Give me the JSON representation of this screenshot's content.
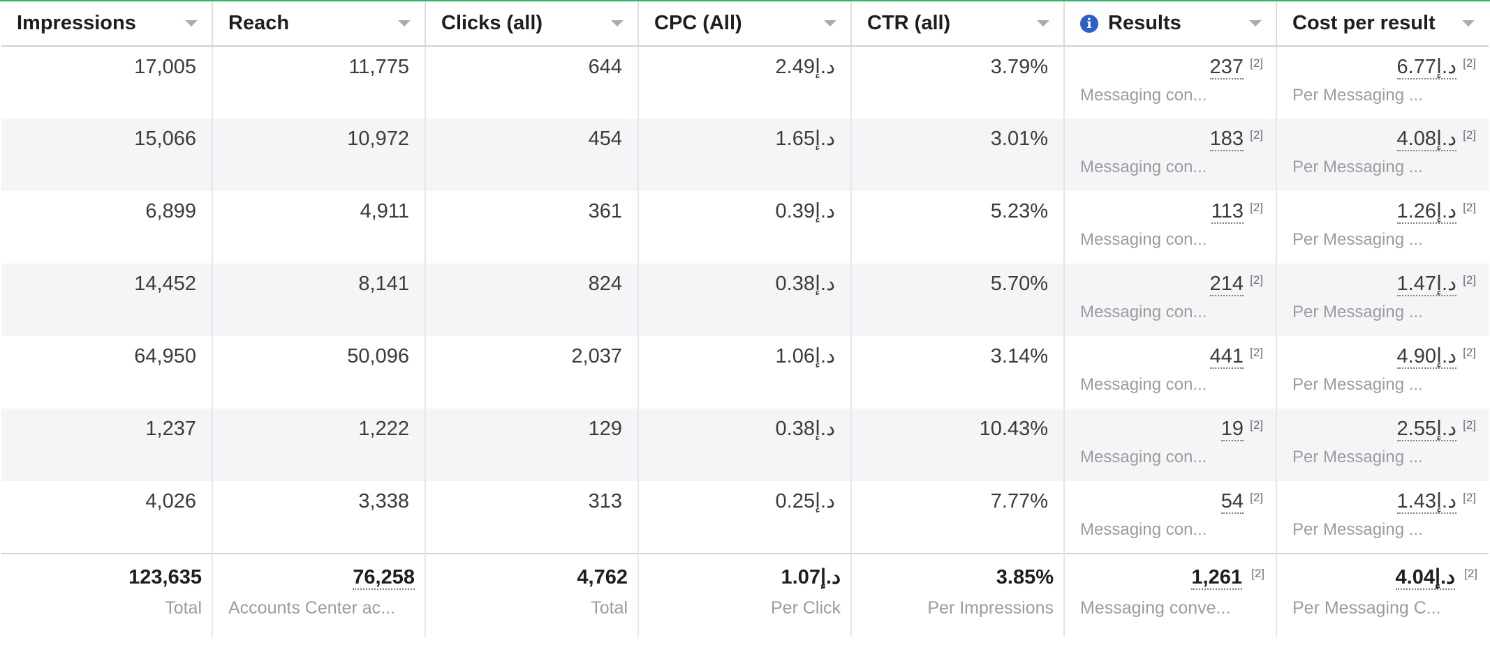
{
  "columns": [
    {
      "label": "Impressions"
    },
    {
      "label": "Reach"
    },
    {
      "label": "Clicks (all)"
    },
    {
      "label": "CPC (All)"
    },
    {
      "label": "CTR (all)"
    },
    {
      "label": "Results",
      "icon": "info-icon"
    },
    {
      "label": "Cost per result"
    }
  ],
  "currency_prefix": "د.إ",
  "footnote_badge": "[2]",
  "rows": [
    {
      "impressions": "17,005",
      "reach": "11,775",
      "clicks": "644",
      "cpc": "2.49",
      "ctr": "3.79%",
      "results": "237",
      "results_sub": "Messaging con...",
      "cost": "6.77",
      "cost_sub": "Per Messaging ..."
    },
    {
      "impressions": "15,066",
      "reach": "10,972",
      "clicks": "454",
      "cpc": "1.65",
      "ctr": "3.01%",
      "results": "183",
      "results_sub": "Messaging con...",
      "cost": "4.08",
      "cost_sub": "Per Messaging ..."
    },
    {
      "impressions": "6,899",
      "reach": "4,911",
      "clicks": "361",
      "cpc": "0.39",
      "ctr": "5.23%",
      "results": "113",
      "results_sub": "Messaging con...",
      "cost": "1.26",
      "cost_sub": "Per Messaging ..."
    },
    {
      "impressions": "14,452",
      "reach": "8,141",
      "clicks": "824",
      "cpc": "0.38",
      "ctr": "5.70%",
      "results": "214",
      "results_sub": "Messaging con...",
      "cost": "1.47",
      "cost_sub": "Per Messaging ..."
    },
    {
      "impressions": "64,950",
      "reach": "50,096",
      "clicks": "2,037",
      "cpc": "1.06",
      "ctr": "3.14%",
      "results": "441",
      "results_sub": "Messaging con...",
      "cost": "4.90",
      "cost_sub": "Per Messaging ..."
    },
    {
      "impressions": "1,237",
      "reach": "1,222",
      "clicks": "129",
      "cpc": "0.38",
      "ctr": "10.43%",
      "results": "19",
      "results_sub": "Messaging con...",
      "cost": "2.55",
      "cost_sub": "Per Messaging ..."
    },
    {
      "impressions": "4,026",
      "reach": "3,338",
      "clicks": "313",
      "cpc": "0.25",
      "ctr": "7.77%",
      "results": "54",
      "results_sub": "Messaging con...",
      "cost": "1.43",
      "cost_sub": "Per Messaging ..."
    }
  ],
  "totals": {
    "impressions": "123,635",
    "impressions_sub": "Total",
    "reach": "76,258",
    "reach_sub": "Accounts Center ac...",
    "clicks": "4,762",
    "clicks_sub": "Total",
    "cpc": "1.07",
    "cpc_sub": "Per Click",
    "ctr": "3.85%",
    "ctr_sub": "Per Impressions",
    "results": "1,261",
    "results_sub": "Messaging conve...",
    "cost": "4.04",
    "cost_sub": "Per Messaging C..."
  },
  "colors": {
    "accent_border": "#2fb36b",
    "info_icon": "#2d5fc7",
    "alt_row": "#f3f5f7"
  }
}
